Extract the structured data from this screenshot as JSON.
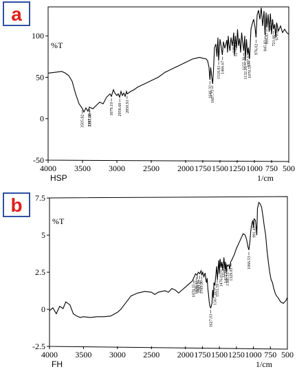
{
  "chart_data": [
    {
      "panel_letter": "a",
      "type": "line",
      "sample_label": "HSP",
      "ylabel": "%T",
      "xlabel": "1/cm",
      "x_ticks": [
        4000,
        3500,
        3000,
        2500,
        2000,
        1750,
        1500,
        1250,
        1000,
        750,
        500
      ],
      "y_ticks": [
        100,
        50,
        0,
        -50
      ],
      "xlim": [
        4000,
        500
      ],
      "ylim": [
        -50,
        135
      ],
      "series": [
        {
          "x": [
            4000,
            3900,
            3800,
            3750,
            3700,
            3650,
            3600,
            3550,
            3500,
            3480,
            3450,
            3420,
            3400,
            3350,
            3300,
            3250,
            3200,
            3150,
            3100,
            3080,
            3050,
            3030,
            3000,
            2980,
            2960,
            2940,
            2920,
            2900,
            2880,
            2860,
            2850,
            2800,
            2750,
            2700,
            2600,
            2500,
            2400,
            2300,
            2200,
            2100,
            2000,
            1950,
            1900,
            1850,
            1800,
            1750,
            1700,
            1680,
            1660,
            1647,
            1635,
            1620,
            1607,
            1595,
            1580,
            1560,
            1545,
            1530,
            1520,
            1500,
            1480,
            1466,
            1450,
            1430,
            1400,
            1390,
            1380,
            1370,
            1355,
            1340,
            1320,
            1300,
            1290,
            1276,
            1260,
            1245,
            1230,
            1215,
            1200,
            1185,
            1170,
            1155,
            1140,
            1132,
            1115,
            1100,
            1087,
            1070,
            1050,
            1030,
            1010,
            990,
            976,
            960,
            940,
            920,
            900,
            880,
            860,
            845,
            830,
            818,
            800,
            785,
            767,
            750,
            735,
            721,
            705,
            690,
            676,
            650,
            620,
            590,
            560,
            530,
            500
          ],
          "y": [
            55,
            56,
            57,
            55,
            52,
            45,
            30,
            18,
            12,
            8,
            13,
            9,
            14,
            12,
            16,
            20,
            18,
            26,
            30,
            27,
            35,
            31,
            28,
            30,
            26,
            33,
            28,
            31,
            27,
            33,
            30,
            33,
            35,
            38,
            42,
            46,
            50,
            56,
            60,
            64,
            68,
            70,
            72,
            73,
            74,
            73,
            72,
            70,
            62,
            47,
            62,
            50,
            42,
            58,
            86,
            90,
            75,
            98,
            70,
            96,
            86,
            77,
            93,
            85,
            95,
            80,
            100,
            90,
            82,
            98,
            88,
            104,
            76,
            100,
            85,
            108,
            88,
            97,
            80,
            104,
            92,
            82,
            100,
            70,
            96,
            78,
            86,
            72,
            108,
            115,
            120,
            110,
            98,
            125,
            131,
            120,
            134,
            112,
            130,
            101,
            128,
            110,
            126,
            105,
            127,
            102,
            120,
            108,
            114,
            98,
            116,
            106,
            112,
            104,
            108,
            104,
            102
          ]
        }
      ],
      "peak_labels": [
        {
          "x": 3505.82,
          "label": "3505.82"
        },
        {
          "x": 3397.96,
          "label": "3397.96"
        },
        {
          "x": 3393.68,
          "label": "3393.68"
        },
        {
          "x": 3079.19,
          "label": "3079.19"
        },
        {
          "x": 2958.68,
          "label": "2958.68"
        },
        {
          "x": 2850.91,
          "label": "2850.91"
        },
        {
          "x": 1646.32,
          "label": "1646.32"
        },
        {
          "x": 1607.71,
          "label": "1607.71"
        },
        {
          "x": 1518.81,
          "label": "1518.81"
        },
        {
          "x": 1466.67,
          "label": "1466.67"
        },
        {
          "x": 1301.01,
          "label": "1301.01"
        },
        {
          "x": 1276.93,
          "label": "1276.93"
        },
        {
          "x": 1155.36,
          "label": "1155.36"
        },
        {
          "x": 1132.2,
          "label": "1132.20"
        },
        {
          "x": 1087.62,
          "label": "1087.62"
        },
        {
          "x": 1070.53,
          "label": "1070.53"
        },
        {
          "x": 976.02,
          "label": "976.02"
        },
        {
          "x": 845.82,
          "label": "845.82"
        },
        {
          "x": 818.87,
          "label": "818.87"
        },
        {
          "x": 766.71,
          "label": "766.71"
        },
        {
          "x": 721.66,
          "label": "721.66"
        },
        {
          "x": 676.08,
          "label": "676.08"
        }
      ]
    },
    {
      "panel_letter": "b",
      "type": "line",
      "sample_label": "FH",
      "ylabel": "%T",
      "xlabel": "1/cm",
      "x_ticks": [
        4000,
        3500,
        3000,
        2500,
        2000,
        1750,
        1500,
        1250,
        1000,
        750,
        500
      ],
      "y_ticks": [
        7.5,
        5,
        2.5,
        0,
        -2.5
      ],
      "xlim": [
        4000,
        500
      ],
      "ylim": [
        -2.5,
        7.6
      ],
      "series": [
        {
          "x": [
            4000,
            3950,
            3900,
            3850,
            3800,
            3760,
            3700,
            3650,
            3600,
            3550,
            3500,
            3400,
            3300,
            3200,
            3100,
            3000,
            2950,
            2900,
            2800,
            2700,
            2600,
            2500,
            2450,
            2400,
            2350,
            2300,
            2250,
            2200,
            2150,
            2100,
            2050,
            2000,
            1950,
            1900,
            1870,
            1850,
            1830,
            1810,
            1790,
            1770,
            1760,
            1745,
            1730,
            1710,
            1700,
            1690,
            1680,
            1670,
            1660,
            1650,
            1640,
            1627,
            1610,
            1600,
            1590,
            1580,
            1567,
            1555,
            1540,
            1530,
            1510,
            1500,
            1490,
            1476,
            1465,
            1450,
            1434,
            1420,
            1410,
            1400,
            1390,
            1380,
            1360,
            1350,
            1335,
            1320,
            1300,
            1280,
            1250,
            1200,
            1150,
            1120,
            1100,
            1080,
            1066,
            1050,
            1040,
            1030,
            1020,
            1010,
            1000,
            990,
            970,
            960,
            950,
            940,
            930,
            920,
            900,
            880,
            860,
            840,
            820,
            800,
            780,
            760,
            740,
            720,
            700,
            680,
            660,
            640,
            600,
            560,
            520,
            500
          ],
          "y": [
            -0.1,
            0.1,
            -0.3,
            0.2,
            0.05,
            0.5,
            0.3,
            -0.3,
            -0.45,
            -0.55,
            -0.5,
            -0.55,
            -0.5,
            -0.5,
            -0.45,
            -0.2,
            0.0,
            0.3,
            0.9,
            1.1,
            1.2,
            1.15,
            1.0,
            1.15,
            1.2,
            1.25,
            1.15,
            1.4,
            1.3,
            1.1,
            1.3,
            1.5,
            1.7,
            1.9,
            2.2,
            2.4,
            2.3,
            2.5,
            2.4,
            2.6,
            2.3,
            2.5,
            2.2,
            2.45,
            2.0,
            1.8,
            2.1,
            1.4,
            1.0,
            0.5,
            0.2,
            0.1,
            0.4,
            1.3,
            0.8,
            1.8,
            1.6,
            2.2,
            2.9,
            2.0,
            3.3,
            2.4,
            3.4,
            2.8,
            3.2,
            2.6,
            3.5,
            2.7,
            3.2,
            2.5,
            3.0,
            2.9,
            3.0,
            2.7,
            3.2,
            3.3,
            3.5,
            3.7,
            4.1,
            4.6,
            5.1,
            5.0,
            4.7,
            4.2,
            4.0,
            4.6,
            5.2,
            5.6,
            5.8,
            6.0,
            5.5,
            6.1,
            6.0,
            5.6,
            5.0,
            6.8,
            7.0,
            7.2,
            7.1,
            6.9,
            6.3,
            5.6,
            5.0,
            4.0,
            3.2,
            2.5,
            2.0,
            1.8,
            1.4,
            1.1,
            0.9,
            0.8,
            0.5,
            0.4,
            0.6,
            0.8
          ]
        }
      ],
      "peak_labels": [
        {
          "x": 1878.35,
          "label": "1878.35"
        },
        {
          "x": 1838.47,
          "label": "1838.47"
        },
        {
          "x": 1818.95,
          "label": "1818.95"
        },
        {
          "x": 1792.07,
          "label": "1792.07"
        },
        {
          "x": 1761.9,
          "label": "1761.90"
        },
        {
          "x": 1627.03,
          "label": "1627.03"
        },
        {
          "x": 1567.1,
          "label": "1567.10"
        },
        {
          "x": 1531.59,
          "label": "1531.59"
        },
        {
          "x": 1476.83,
          "label": "1476.83"
        },
        {
          "x": 1434.77,
          "label": "1434.77"
        },
        {
          "x": 1412.23,
          "label": "1412.23"
        },
        {
          "x": 1380.55,
          "label": "1380.55"
        },
        {
          "x": 1329.81,
          "label": "1329.81"
        },
        {
          "x": 1066.53,
          "label": "1066.53"
        },
        {
          "x": 991.45,
          "label": "991.45"
        }
      ]
    }
  ]
}
